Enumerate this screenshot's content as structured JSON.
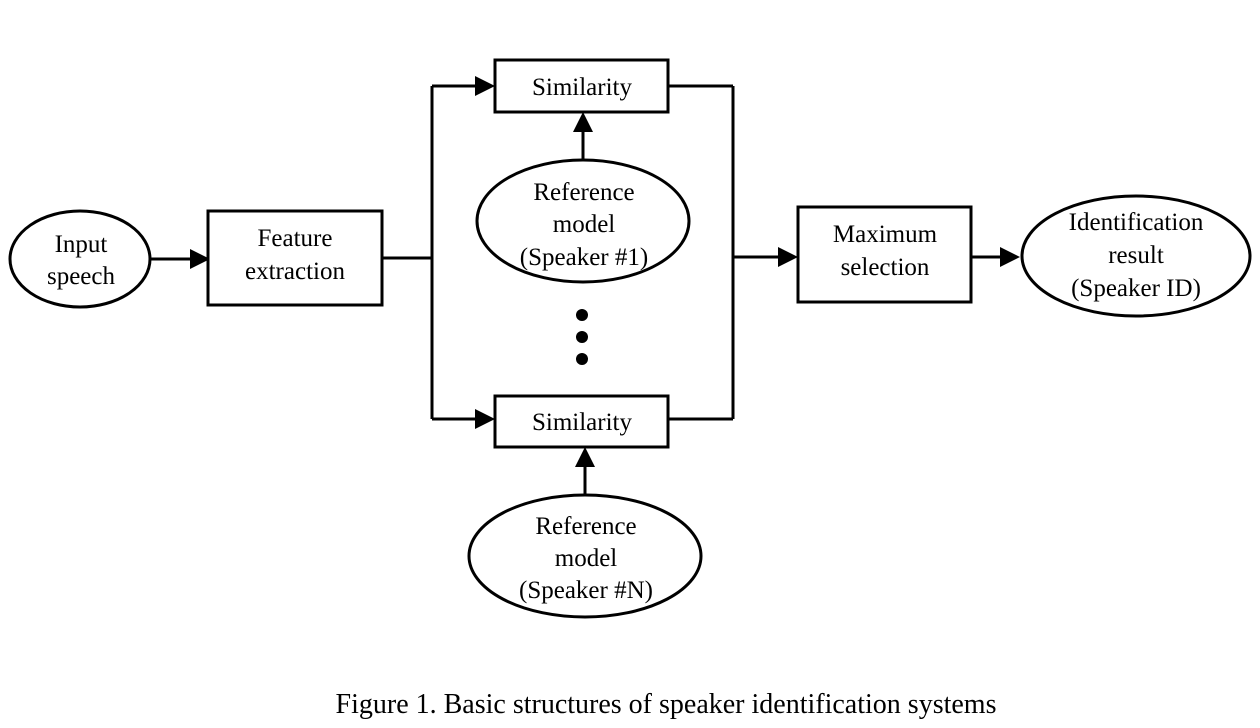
{
  "nodes": {
    "input_speech": [
      "Input",
      "speech"
    ],
    "feature_extraction": [
      "Feature",
      "extraction"
    ],
    "similarity_1": "Similarity",
    "similarity_n": "Similarity",
    "reference_model_1": [
      "Reference",
      "model",
      "(Speaker #1)"
    ],
    "reference_model_n": [
      "Reference",
      "model",
      "(Speaker #N)"
    ],
    "maximum_selection": [
      "Maximum",
      "selection"
    ],
    "identification_result": [
      "Identification",
      "result",
      "(Speaker ID)"
    ]
  },
  "caption": "Figure 1. Basic structures of speaker identification systems"
}
